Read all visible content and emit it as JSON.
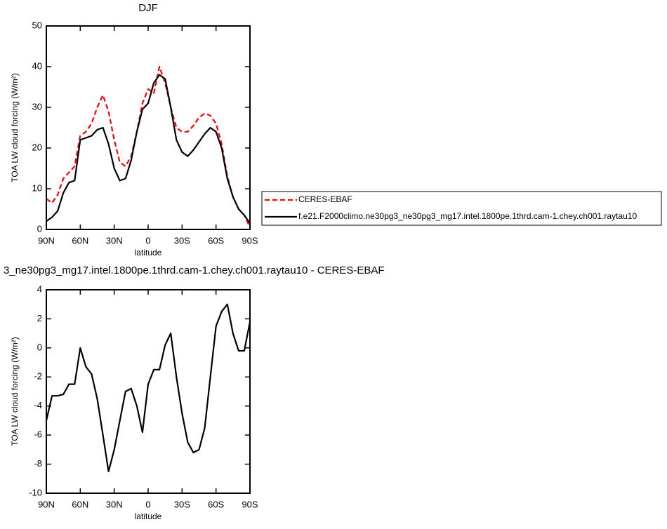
{
  "chart_data": [
    {
      "type": "line",
      "title": "DJF",
      "xlabel": "latitude",
      "ylabel": "TOA LW cloud forcing (W/m²)",
      "x": [
        90,
        85,
        80,
        75,
        70,
        65,
        60,
        55,
        50,
        45,
        40,
        35,
        30,
        25,
        20,
        15,
        10,
        5,
        0,
        -5,
        -10,
        -15,
        -20,
        -25,
        -30,
        -35,
        -40,
        -45,
        -50,
        -55,
        -60,
        -65,
        -70,
        -75,
        -80,
        -85,
        -90
      ],
      "series": [
        {
          "name": "CERES-EBAF",
          "color": "#ff0000",
          "style": "dashed",
          "values": [
            7.5,
            6.5,
            8.5,
            12.5,
            14,
            15.5,
            23,
            24,
            26,
            30,
            33,
            29,
            22,
            16.5,
            15.5,
            18,
            24,
            31,
            34.5,
            33.5,
            40,
            36,
            30,
            25,
            24,
            24,
            25.5,
            27.5,
            28.5,
            28,
            26,
            21,
            13,
            8,
            5,
            3.5,
            0.5
          ]
        },
        {
          "name": "f.e21.F2000climo.ne30pg3_ne30pg3_mg17.intel.1800pe.1thrd.cam-1.chey.ch001.raytau10",
          "color": "#000000",
          "style": "solid",
          "values": [
            2,
            3,
            4.5,
            9,
            11.5,
            12,
            22,
            22.5,
            23,
            24.5,
            25,
            21,
            15,
            12,
            12.5,
            17,
            24,
            29.5,
            31,
            36,
            38,
            37,
            30,
            22,
            19,
            18,
            19.5,
            21.5,
            23.5,
            25,
            24,
            20,
            12.5,
            8,
            5,
            3.5,
            1.5
          ]
        }
      ],
      "xlim": [
        90,
        -90
      ],
      "xticks": [
        {
          "value": 90,
          "label": "90N"
        },
        {
          "value": 60,
          "label": "60N"
        },
        {
          "value": 30,
          "label": "30N"
        },
        0,
        {
          "value": -30,
          "label": "30S"
        },
        {
          "value": -60,
          "label": "60S"
        },
        {
          "value": -90,
          "label": "90S"
        }
      ],
      "ylim": [
        0,
        50
      ],
      "yticks": [
        0,
        10,
        20,
        30,
        40,
        50
      ],
      "legend": "right"
    },
    {
      "type": "line",
      "title": "3_ne30pg3_mg17.intel.1800pe.1thrd.cam-1.chey.ch001.raytau10 - CERES-EBAF",
      "xlabel": "latitude",
      "ylabel": "TOA LW cloud forcing (W/m²)",
      "x": [
        90,
        85,
        80,
        75,
        70,
        65,
        60,
        55,
        50,
        45,
        40,
        35,
        30,
        25,
        20,
        15,
        10,
        5,
        0,
        -5,
        -10,
        -15,
        -20,
        -25,
        -30,
        -35,
        -40,
        -45,
        -50,
        -55,
        -60,
        -65,
        -70,
        -75,
        -80,
        -85,
        -90
      ],
      "series": [
        {
          "color": "#000000",
          "style": "solid",
          "values": [
            -5,
            -3.3,
            -3.3,
            -3.2,
            -2.5,
            -2.5,
            0,
            -1.3,
            -1.8,
            -3.5,
            -6,
            -8.5,
            -7,
            -5,
            -3,
            -2.8,
            -4,
            -5.8,
            -2.5,
            -1.5,
            -1.5,
            0.2,
            1,
            -2,
            -4.5,
            -6.5,
            -7.2,
            -7,
            -5.5,
            -2,
            1.5,
            2.5,
            3,
            1,
            -0.2,
            -0.2,
            1.8
          ]
        }
      ],
      "xlim": [
        90,
        -90
      ],
      "xticks": [
        {
          "value": 90,
          "label": "90N"
        },
        {
          "value": 60,
          "label": "60N"
        },
        {
          "value": 30,
          "label": "30N"
        },
        0,
        {
          "value": -30,
          "label": "30S"
        },
        {
          "value": -60,
          "label": "60S"
        },
        {
          "value": -90,
          "label": "90S"
        }
      ],
      "ylim": [
        -10,
        4
      ],
      "yticks": [
        -10,
        -8,
        -6,
        -4,
        -2,
        0,
        2,
        4
      ]
    }
  ]
}
